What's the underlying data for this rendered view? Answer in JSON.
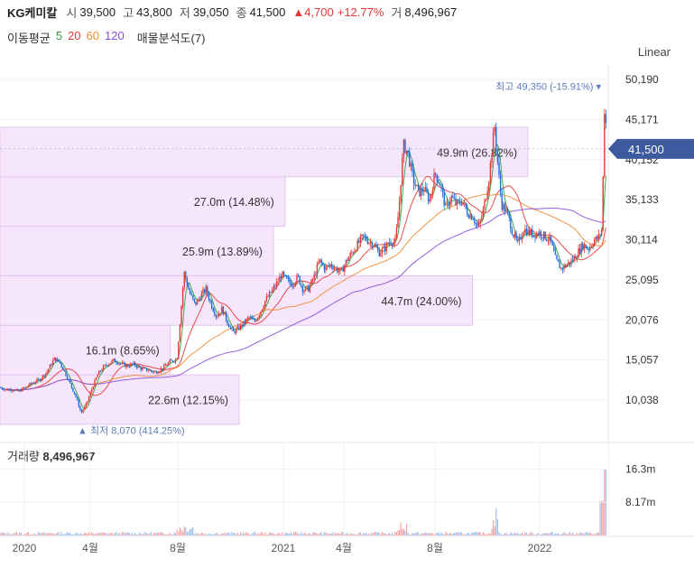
{
  "header": {
    "name": "KG케미칼",
    "open_label": "시",
    "open": "39,500",
    "high_label": "고",
    "high": "43,800",
    "low_label": "저",
    "low": "39,050",
    "close_label": "종",
    "close": "41,500",
    "change": "▲4,700",
    "change_pct": "+12.77%",
    "volume_label": "거",
    "volume": "8,496,967"
  },
  "ma_legend": {
    "label": "이동평균",
    "items": [
      {
        "label": "5",
        "color": "#2e9e3b"
      },
      {
        "label": "20",
        "color": "#e53935"
      },
      {
        "label": "60",
        "color": "#ef8a2f"
      },
      {
        "label": "120",
        "color": "#8a4fd8"
      }
    ],
    "vp_label": "매물분석도(7)"
  },
  "scale_button": "Linear",
  "colors": {
    "up": "#e53935",
    "down": "#1e6fd9",
    "vp_fill": "#f6e6fb",
    "vp_stroke": "#e2c4ef",
    "current": "#3d5a9e"
  },
  "chart_data": {
    "type": "candlestick",
    "price_axis": {
      "ticks": [
        10038,
        15057,
        20076,
        25095,
        30114,
        35133,
        40152,
        45171,
        50190
      ],
      "tick_labels": [
        "10,038",
        "15,057",
        "20,076",
        "25,095",
        "30,114",
        "35,133",
        "40,152",
        "45,171",
        "50,190"
      ],
      "range": [
        7000,
        52000
      ]
    },
    "time_axis": {
      "labels": [
        "2020",
        "4월",
        "8월",
        "2021",
        "4월",
        "8월",
        "2022"
      ],
      "label_dates": [
        "2020-01",
        "2020-04",
        "2020-08",
        "2021-01",
        "2021-04",
        "2021-08",
        "2022-01"
      ]
    },
    "current_price": {
      "value": 41500,
      "label": "41,500"
    },
    "max_marker": {
      "label": "최고 49,350 (-15.91%)",
      "value": 49350
    },
    "min_marker": {
      "label": "최저 8,070 (414.25%)",
      "value": 8070
    },
    "volume_profile": [
      {
        "label": "22.6m (12.15%)",
        "low": 7000,
        "high": 13200,
        "pct": 12.15
      },
      {
        "label": "16.1m (8.65%)",
        "low": 13200,
        "high": 19400,
        "pct": 8.65
      },
      {
        "label": "44.7m (24.00%)",
        "low": 19400,
        "high": 25600,
        "pct": 24.0
      },
      {
        "label": "25.9m (13.89%)",
        "low": 25600,
        "high": 31800,
        "pct": 13.89
      },
      {
        "label": "27.0m (14.48%)",
        "low": 31800,
        "high": 38000,
        "pct": 14.48
      },
      {
        "label": "49.9m (26.82%)",
        "low": 38000,
        "high": 44200,
        "pct": 26.82
      }
    ],
    "price_path": [
      [
        0,
        11600
      ],
      [
        8,
        11300
      ],
      [
        14,
        11400
      ],
      [
        20,
        11100
      ],
      [
        28,
        11600
      ],
      [
        36,
        12200
      ],
      [
        44,
        12600
      ],
      [
        52,
        13600
      ],
      [
        60,
        15200
      ],
      [
        66,
        14800
      ],
      [
        72,
        13500
      ],
      [
        78,
        12000
      ],
      [
        84,
        10500
      ],
      [
        90,
        8400
      ],
      [
        96,
        9600
      ],
      [
        102,
        11500
      ],
      [
        108,
        13200
      ],
      [
        114,
        14100
      ],
      [
        120,
        14600
      ],
      [
        126,
        15000
      ],
      [
        132,
        14700
      ],
      [
        140,
        14300
      ],
      [
        148,
        14500
      ],
      [
        156,
        14000
      ],
      [
        164,
        13800
      ],
      [
        172,
        13500
      ],
      [
        180,
        14000
      ],
      [
        188,
        14800
      ],
      [
        196,
        15200
      ],
      [
        200,
        20500
      ],
      [
        204,
        26000
      ],
      [
        210,
        23500
      ],
      [
        216,
        22000
      ],
      [
        222,
        23000
      ],
      [
        228,
        24000
      ],
      [
        234,
        22000
      ],
      [
        240,
        20500
      ],
      [
        246,
        21500
      ],
      [
        252,
        19800
      ],
      [
        258,
        18500
      ],
      [
        264,
        19000
      ],
      [
        270,
        19600
      ],
      [
        276,
        20400
      ],
      [
        282,
        19800
      ],
      [
        288,
        21000
      ],
      [
        294,
        22500
      ],
      [
        300,
        23500
      ],
      [
        306,
        24500
      ],
      [
        312,
        25800
      ],
      [
        318,
        25000
      ],
      [
        324,
        24500
      ],
      [
        330,
        25500
      ],
      [
        336,
        23800
      ],
      [
        342,
        24000
      ],
      [
        348,
        25500
      ],
      [
        354,
        27500
      ],
      [
        360,
        26500
      ],
      [
        366,
        27000
      ],
      [
        372,
        26500
      ],
      [
        378,
        26000
      ],
      [
        384,
        27500
      ],
      [
        390,
        28500
      ],
      [
        396,
        29500
      ],
      [
        402,
        30500
      ],
      [
        408,
        30000
      ],
      [
        414,
        29500
      ],
      [
        420,
        28500
      ],
      [
        426,
        29000
      ],
      [
        432,
        30000
      ],
      [
        438,
        29800
      ],
      [
        442,
        34000
      ],
      [
        447,
        42000
      ],
      [
        452,
        41000
      ],
      [
        458,
        37500
      ],
      [
        464,
        36000
      ],
      [
        470,
        36500
      ],
      [
        476,
        35000
      ],
      [
        482,
        38500
      ],
      [
        488,
        37000
      ],
      [
        494,
        34000
      ],
      [
        500,
        35500
      ],
      [
        506,
        34500
      ],
      [
        512,
        35000
      ],
      [
        518,
        33500
      ],
      [
        524,
        33000
      ],
      [
        530,
        31500
      ],
      [
        536,
        34000
      ],
      [
        542,
        38000
      ],
      [
        548,
        44500
      ],
      [
        552,
        39000
      ],
      [
        556,
        34500
      ],
      [
        562,
        33500
      ],
      [
        568,
        31000
      ],
      [
        574,
        29500
      ],
      [
        580,
        31500
      ],
      [
        586,
        31000
      ],
      [
        592,
        30800
      ],
      [
        598,
        31000
      ],
      [
        604,
        30500
      ],
      [
        610,
        30000
      ],
      [
        616,
        27500
      ],
      [
        622,
        26500
      ],
      [
        628,
        27000
      ],
      [
        634,
        27500
      ],
      [
        640,
        28500
      ],
      [
        646,
        29500
      ],
      [
        652,
        29000
      ],
      [
        658,
        30000
      ],
      [
        664,
        30500
      ],
      [
        667,
        31500
      ],
      [
        670,
        47500
      ],
      [
        673,
        41500
      ]
    ],
    "volume_panel": {
      "title": "거래량",
      "value": "8,496,967",
      "ticks": [
        8170000,
        16300000
      ],
      "tick_labels": [
        "8.17m",
        "16.3m"
      ],
      "range": [
        0,
        20000000
      ]
    }
  }
}
